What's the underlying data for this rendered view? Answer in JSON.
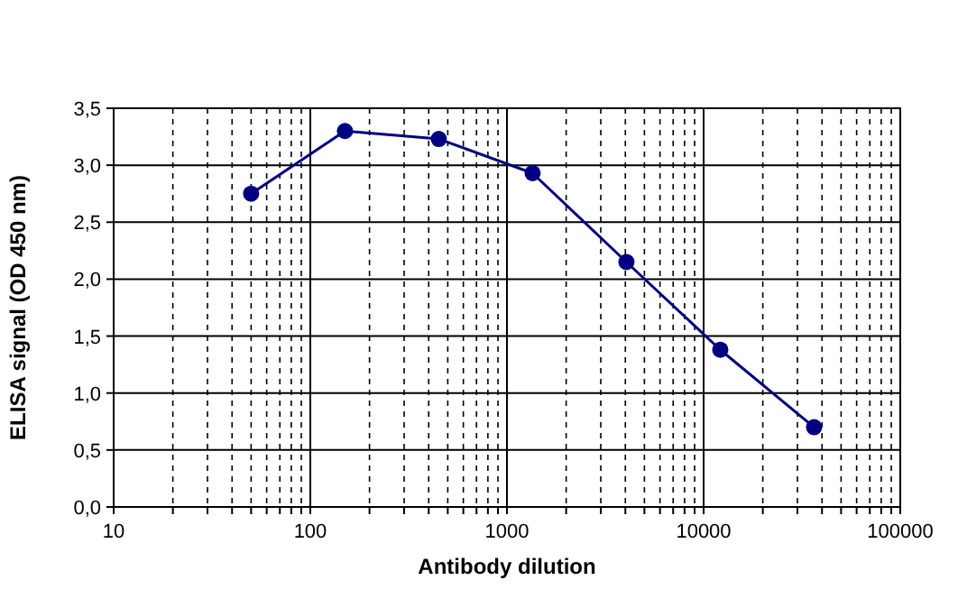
{
  "chart_data": {
    "type": "line",
    "xlabel": "Antibody dilution",
    "ylabel": "ELISA signal (OD 450 nm)",
    "x": [
      50,
      150,
      450,
      1350,
      4050,
      12150,
      36450
    ],
    "series": [
      {
        "color": "#000080",
        "values": [
          2.75,
          3.3,
          3.23,
          2.93,
          2.15,
          1.38,
          0.7
        ]
      }
    ],
    "log": "x",
    "xlim": [
      10,
      100000
    ],
    "xticks": [
      10,
      {
        "value": 20,
        "label": null
      },
      {
        "value": 30,
        "label": null
      },
      {
        "value": 40,
        "label": null
      },
      {
        "value": 50,
        "label": null
      },
      {
        "value": 60,
        "label": null
      },
      {
        "value": 70,
        "label": null
      },
      {
        "value": 80,
        "label": null
      },
      {
        "value": 90,
        "label": null
      },
      100,
      {
        "value": 200,
        "label": null
      },
      {
        "value": 300,
        "label": null
      },
      {
        "value": 400,
        "label": null
      },
      {
        "value": 500,
        "label": null
      },
      {
        "value": 600,
        "label": null
      },
      {
        "value": 700,
        "label": null
      },
      {
        "value": 800,
        "label": null
      },
      {
        "value": 900,
        "label": null
      },
      1000,
      {
        "value": 2000,
        "label": null
      },
      {
        "value": 3000,
        "label": null
      },
      {
        "value": 4000,
        "label": null
      },
      {
        "value": 5000,
        "label": null
      },
      {
        "value": 6000,
        "label": null
      },
      {
        "value": 7000,
        "label": null
      },
      {
        "value": 8000,
        "label": null
      },
      {
        "value": 9000,
        "label": null
      },
      10000,
      {
        "value": 20000,
        "label": null
      },
      {
        "value": 30000,
        "label": null
      },
      {
        "value": 40000,
        "label": null
      },
      {
        "value": 50000,
        "label": null
      },
      {
        "value": 60000,
        "label": null
      },
      {
        "value": 70000,
        "label": null
      },
      {
        "value": 80000,
        "label": null
      },
      {
        "value": 90000,
        "label": null
      },
      100000
    ],
    "ylim": [
      0,
      3.5
    ],
    "yticks": [
      {
        "value": 0,
        "label": "0,0"
      },
      {
        "value": 0.5,
        "label": "0,5"
      },
      {
        "value": 1,
        "label": "1,0"
      },
      {
        "value": 1.5,
        "label": "1,5"
      },
      {
        "value": 2,
        "label": "2,0"
      },
      {
        "value": 2.5,
        "label": "2,5"
      },
      {
        "value": 3,
        "label": "3,0"
      },
      {
        "value": 3.5,
        "label": "3,5"
      }
    ],
    "grid": true,
    "marker": "circle",
    "line_style": "solid"
  }
}
